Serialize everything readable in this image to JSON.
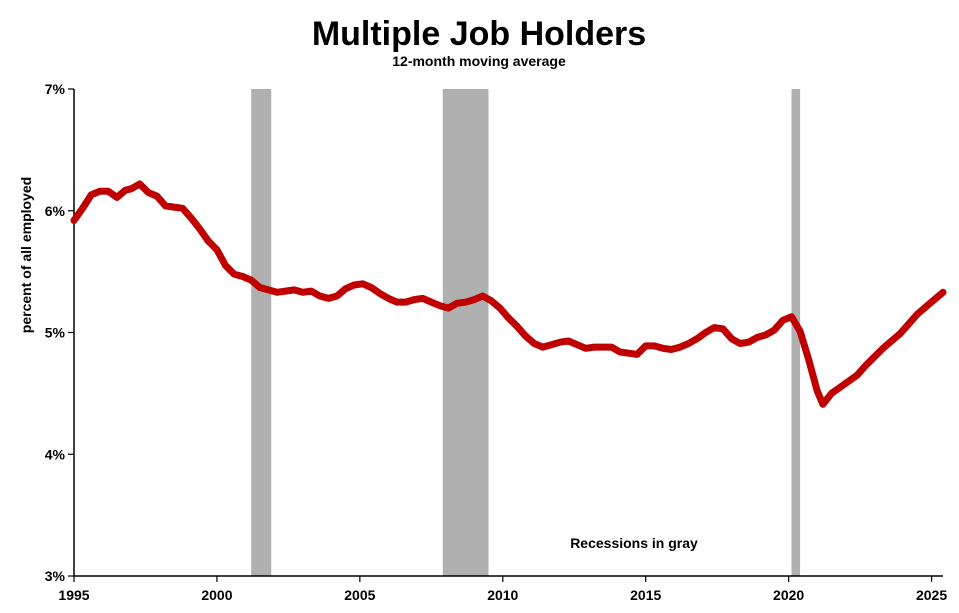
{
  "chart_data": {
    "type": "line",
    "title": "Multiple Job Holders",
    "subtitle": "12-month moving average",
    "ylabel": "percent of all employed",
    "xlabel": "",
    "annotation": "Recessions in gray",
    "xlim": [
      1995,
      2025.4
    ],
    "ylim": [
      3,
      7
    ],
    "x_ticks": [
      1995,
      2000,
      2005,
      2010,
      2015,
      2020,
      2025
    ],
    "x_tick_labels": [
      "1995",
      "2000",
      "2005",
      "2010",
      "2015",
      "2020",
      "2025"
    ],
    "y_ticks": [
      3,
      4,
      5,
      6,
      7
    ],
    "y_tick_labels": [
      "3%",
      "4%",
      "5%",
      "6%",
      "7%"
    ],
    "grid": false,
    "line_color": "#c00000",
    "recession_color": "#b0b0b0",
    "recessions": [
      [
        2001.2,
        2001.9
      ],
      [
        2007.9,
        2009.5
      ],
      [
        2020.1,
        2020.4
      ]
    ],
    "series": [
      {
        "x": [
          1995.0,
          1995.3,
          1995.6,
          1995.9,
          1996.2,
          1996.5,
          1996.8,
          1997.0,
          1997.3,
          1997.6,
          1997.9,
          1998.2,
          1998.5,
          1998.8,
          1999.1,
          1999.4,
          1999.7,
          2000.0,
          2000.3,
          2000.6,
          2000.9,
          2001.2,
          2001.5,
          2001.8,
          2002.1,
          2002.4,
          2002.7,
          2003.0,
          2003.3,
          2003.6,
          2003.9,
          2004.2,
          2004.5,
          2004.8,
          2005.1,
          2005.4,
          2005.7,
          2006.0,
          2006.3,
          2006.6,
          2006.9,
          2007.2,
          2007.5,
          2007.8,
          2008.1,
          2008.4,
          2008.7,
          2009.0,
          2009.3,
          2009.6,
          2009.9,
          2010.2,
          2010.5,
          2010.8,
          2011.1,
          2011.4,
          2011.7,
          2012.0,
          2012.3,
          2012.6,
          2012.9,
          2013.2,
          2013.5,
          2013.8,
          2014.1,
          2014.4,
          2014.7,
          2015.0,
          2015.3,
          2015.6,
          2015.9,
          2016.2,
          2016.5,
          2016.8,
          2017.1,
          2017.4,
          2017.7,
          2018.0,
          2018.3,
          2018.6,
          2018.9,
          2019.2,
          2019.5,
          2019.8,
          2020.1,
          2020.4,
          2020.7,
          2021.0,
          2021.2,
          2021.5,
          2021.8,
          2022.1,
          2022.4,
          2022.7,
          2023.0,
          2023.3,
          2023.6,
          2023.9,
          2024.2,
          2024.5,
          2024.8,
          2025.1,
          2025.4
        ],
        "values": [
          5.92,
          6.02,
          6.13,
          6.16,
          6.16,
          6.11,
          6.17,
          6.18,
          6.22,
          6.15,
          6.12,
          6.04,
          6.03,
          6.02,
          5.94,
          5.85,
          5.75,
          5.68,
          5.55,
          5.48,
          5.46,
          5.43,
          5.37,
          5.35,
          5.33,
          5.34,
          5.35,
          5.33,
          5.34,
          5.3,
          5.28,
          5.3,
          5.36,
          5.39,
          5.4,
          5.37,
          5.32,
          5.28,
          5.25,
          5.25,
          5.27,
          5.28,
          5.25,
          5.22,
          5.2,
          5.24,
          5.25,
          5.27,
          5.3,
          5.26,
          5.2,
          5.12,
          5.05,
          4.97,
          4.91,
          4.88,
          4.9,
          4.92,
          4.93,
          4.9,
          4.87,
          4.88,
          4.88,
          4.88,
          4.84,
          4.83,
          4.82,
          4.89,
          4.89,
          4.87,
          4.86,
          4.88,
          4.91,
          4.95,
          5.0,
          5.04,
          5.03,
          4.95,
          4.91,
          4.92,
          4.96,
          4.98,
          5.02,
          5.1,
          5.13,
          5.01,
          4.78,
          4.52,
          4.41,
          4.5,
          4.55,
          4.6,
          4.65,
          4.73,
          4.8,
          4.87,
          4.93,
          4.99,
          5.07,
          5.15,
          5.21,
          5.27,
          5.33
        ]
      }
    ]
  }
}
